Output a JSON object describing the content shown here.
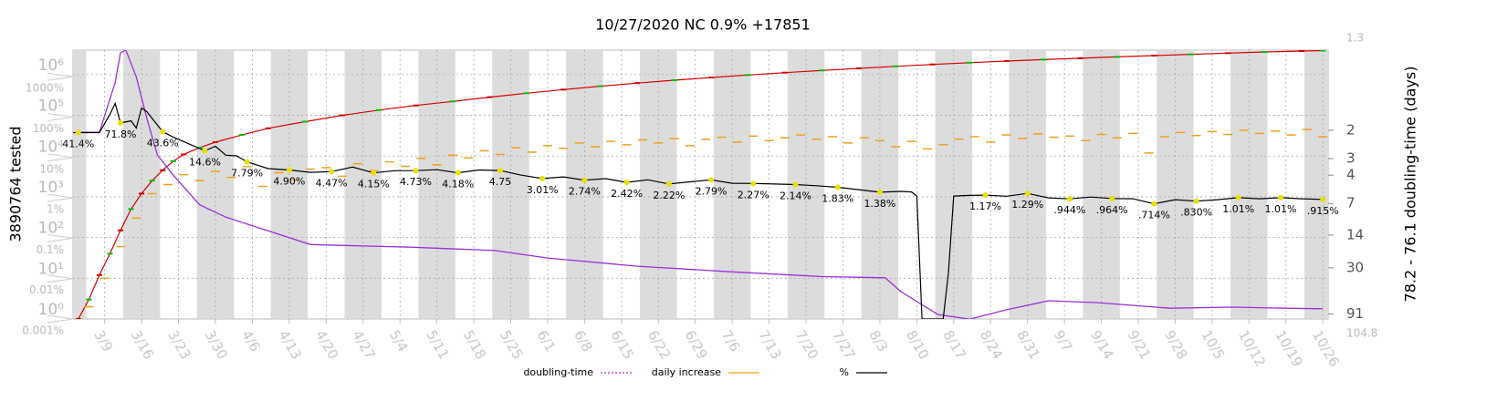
{
  "chart_data": {
    "type": "line",
    "title": "10/27/2020 NC 0.9% +17851",
    "ylabel": "3890764 tested",
    "y2label": "78.2 - 76.1 doubling-time (days)",
    "log_y": true,
    "grid": true,
    "legend": "bottom",
    "xlim": [
      63,
      301
    ],
    "xticks": [
      {
        "value": 69,
        "label": "3/9"
      },
      {
        "value": 76,
        "label": "3/16"
      },
      {
        "value": 83,
        "label": "3/23"
      },
      {
        "value": 90,
        "label": "3/30"
      },
      {
        "value": 97,
        "label": "4/6"
      },
      {
        "value": 104,
        "label": "4/13"
      },
      {
        "value": 111,
        "label": "4/20"
      },
      {
        "value": 118,
        "label": "4/27"
      },
      {
        "value": 125,
        "label": "5/4"
      },
      {
        "value": 132,
        "label": "5/11"
      },
      {
        "value": 139,
        "label": "5/18"
      },
      {
        "value": 146,
        "label": "5/25"
      },
      {
        "value": 153,
        "label": "6/1"
      },
      {
        "value": 160,
        "label": "6/8"
      },
      {
        "value": 167,
        "label": "6/15"
      },
      {
        "value": 174,
        "label": "6/22"
      },
      {
        "value": 181,
        "label": "6/29"
      },
      {
        "value": 188,
        "label": "7/6"
      },
      {
        "value": 195,
        "label": "7/13"
      },
      {
        "value": 202,
        "label": "7/20"
      },
      {
        "value": 209,
        "label": "7/27"
      },
      {
        "value": 216,
        "label": "8/3"
      },
      {
        "value": 223,
        "label": "8/10"
      },
      {
        "value": 230,
        "label": "8/17"
      },
      {
        "value": 237,
        "label": "8/24"
      },
      {
        "value": 244,
        "label": "8/31"
      },
      {
        "value": 251,
        "label": "9/7"
      },
      {
        "value": 258,
        "label": "9/14"
      },
      {
        "value": 265,
        "label": "9/21"
      },
      {
        "value": 272,
        "label": "9/28"
      },
      {
        "value": 279,
        "label": "10/5"
      },
      {
        "value": 286,
        "label": "10/12"
      },
      {
        "value": 293,
        "label": "10/19"
      },
      {
        "value": 300,
        "label": "10/26"
      }
    ],
    "ylim": [
      1,
      4000000
    ],
    "yticks": [
      {
        "value": 1,
        "label": "10⁰"
      },
      {
        "value": 10,
        "label": "10¹"
      },
      {
        "value": 100,
        "label": "10²"
      },
      {
        "value": 1000,
        "label": "10³"
      },
      {
        "value": 10000,
        "label": "10⁴"
      },
      {
        "value": 100000,
        "label": "10⁵"
      },
      {
        "value": 1000000,
        "label": "10⁶"
      }
    ],
    "pct_ylim": [
      0.001,
      4570
    ],
    "pct_yticks": [
      {
        "value": 0.001,
        "label": "0.001%"
      },
      {
        "value": 0.01,
        "label": "0.01%"
      },
      {
        "value": 0.1,
        "label": "0.1%"
      },
      {
        "value": 1,
        "label": "1%"
      },
      {
        "value": 10,
        "label": "10%"
      },
      {
        "value": 100,
        "label": "100%"
      },
      {
        "value": 1000,
        "label": "1000%"
      }
    ],
    "y2lim": [
      1.3,
      104.8
    ],
    "y2ticks": [
      2,
      3,
      4,
      7,
      14,
      30,
      91
    ],
    "series": [
      {
        "color": "#d40000",
        "alt_color": "#00c000",
        "x": [
          64,
          66,
          68,
          70,
          72,
          74,
          76,
          78,
          80,
          82,
          84,
          87,
          90,
          95,
          100,
          107,
          114,
          121,
          128,
          135,
          142,
          149,
          156,
          163,
          170,
          177,
          184,
          191,
          198,
          205,
          212,
          219,
          226,
          233,
          240,
          247,
          254,
          261,
          268,
          275,
          282,
          289,
          296,
          300
        ],
        "values": [
          1,
          3,
          12,
          40,
          150,
          500,
          1200,
          2500,
          4500,
          7500,
          11000,
          16000,
          22000,
          33000,
          48000,
          70000,
          100000,
          135000,
          175000,
          220000,
          280000,
          350000,
          430000,
          520000,
          620000,
          730000,
          850000,
          980000,
          1120000,
          1270000,
          1430000,
          1600000,
          1780000,
          1960000,
          2150000,
          2340000,
          2530000,
          2730000,
          2940000,
          3150000,
          3370000,
          3600000,
          3800000,
          3890764
        ]
      },
      {
        "name": "doubling-time",
        "color": "#9b30d9",
        "axis": "y2",
        "x": [
          64,
          68,
          71,
          72,
          73,
          75,
          77,
          79,
          82,
          87,
          92,
          101,
          108,
          118,
          127,
          143,
          153,
          170,
          188,
          205,
          217,
          220,
          227,
          233,
          240,
          248,
          257,
          271,
          283,
          293,
          300
        ],
        "values": [
          2.05,
          2.05,
          1.31,
          1.15,
          1.14,
          1.27,
          1.75,
          2.83,
          4,
          7.2,
          9.4,
          13.2,
          17.4,
          18,
          18.5,
          20,
          23.8,
          28.9,
          33,
          37,
          38,
          53,
          92,
          103,
          82,
          66,
          69,
          79,
          77,
          79,
          80
        ]
      },
      {
        "name": "daily increase",
        "color": "#f0a020",
        "x": [
          66,
          69,
          72,
          75,
          78,
          81,
          84,
          87,
          90,
          93,
          96,
          99,
          102,
          105,
          108,
          111,
          114,
          117,
          120,
          123,
          126,
          129,
          132,
          135,
          138,
          141,
          144,
          147,
          150,
          153,
          156,
          159,
          162,
          165,
          168,
          171,
          174,
          177,
          180,
          183,
          186,
          189,
          192,
          195,
          198,
          201,
          204,
          207,
          210,
          213,
          216,
          219,
          222,
          225,
          228,
          231,
          234,
          237,
          240,
          243,
          246,
          249,
          252,
          255,
          258,
          261,
          264,
          267,
          270,
          273,
          276,
          279,
          282,
          285,
          288,
          291,
          294,
          297,
          300
        ],
        "values": [
          2,
          10,
          60,
          300,
          1200,
          2000,
          3500,
          2500,
          4200,
          3000,
          5500,
          1800,
          3900,
          2600,
          4800,
          5200,
          3200,
          6500,
          4400,
          7200,
          5600,
          8800,
          6100,
          10500,
          9000,
          13500,
          11000,
          16000,
          12500,
          18000,
          15500,
          21000,
          17000,
          23000,
          19000,
          25000,
          21000,
          27000,
          18000,
          26000,
          29000,
          22000,
          31000,
          24000,
          28000,
          33000,
          26000,
          30000,
          21000,
          28000,
          24000,
          17000,
          23000,
          15000,
          19000,
          26000,
          30000,
          22000,
          33000,
          27000,
          35000,
          29000,
          31000,
          24000,
          34000,
          28000,
          36000,
          12000,
          30000,
          38000,
          32000,
          40000,
          34000,
          43000,
          36000,
          41000,
          33000,
          45000,
          30000
        ]
      },
      {
        "name": "%",
        "color": "#000000",
        "axis": "pct",
        "x": [
          63,
          64,
          68,
          70,
          71,
          72,
          74,
          75,
          76,
          77,
          80,
          82,
          84,
          86,
          88,
          90,
          92,
          94,
          96,
          100,
          104,
          108,
          112,
          116,
          120,
          124,
          128,
          132,
          136,
          140,
          144,
          148,
          152,
          156,
          160,
          164,
          168,
          172,
          176,
          180,
          184,
          188,
          192,
          196,
          200,
          204,
          208,
          212,
          216,
          220,
          222,
          223,
          224,
          228,
          229,
          230,
          233,
          236,
          240,
          244,
          248,
          252,
          256,
          260,
          264,
          268,
          272,
          276,
          280,
          284,
          288,
          292,
          296,
          300
        ],
        "values": [
          41.4,
          41.4,
          41.4,
          117,
          218,
          71.8,
          81,
          53.6,
          168,
          136,
          43.6,
          32,
          24.7,
          19.1,
          14.6,
          19,
          11.4,
          11,
          7.79,
          5.3,
          4.9,
          4.3,
          4.47,
          5.8,
          4.15,
          4.7,
          4.73,
          5.0,
          4.18,
          4.9,
          4.75,
          3.65,
          3.01,
          3.3,
          2.74,
          3.0,
          2.42,
          2.8,
          2.22,
          2.5,
          2.79,
          2.3,
          2.27,
          2.2,
          2.14,
          2.0,
          1.83,
          1.6,
          1.38,
          1.45,
          1.4,
          1.11,
          0.001,
          0.001,
          0.0137,
          1.11,
          1.15,
          1.17,
          1.1,
          1.29,
          1.0,
          0.944,
          1.05,
          0.964,
          0.95,
          0.714,
          0.9,
          0.83,
          0.9,
          1.01,
          0.95,
          1.01,
          0.95,
          0.915
        ]
      },
      {
        "color": "#e8e000",
        "axis": "pct",
        "x": [
          64,
          72,
          80,
          88,
          96,
          104,
          112,
          120,
          128,
          136,
          144,
          152,
          160,
          168,
          176,
          184,
          192,
          200,
          208,
          216,
          236,
          244,
          252,
          260,
          268,
          276,
          284,
          292,
          300
        ],
        "values": [
          41.4,
          71.8,
          43.6,
          14.6,
          7.79,
          4.9,
          4.47,
          4.15,
          4.73,
          4.18,
          4.75,
          3.01,
          2.74,
          2.42,
          2.22,
          2.79,
          2.27,
          2.14,
          1.83,
          1.38,
          1.17,
          1.29,
          0.944,
          0.964,
          0.714,
          0.83,
          1.01,
          1.01,
          0.915
        ],
        "value_labels": [
          "41.4%",
          "71.8%",
          "43.6%",
          "14.6%",
          "7.79%",
          "4.90%",
          "4.47%",
          "4.15%",
          "4.73%",
          "4.18%",
          "4.75",
          "3.01%",
          "2.74%",
          "2.42%",
          "2.22%",
          "2.79%",
          "2.27%",
          "2.14%",
          "1.83%",
          "1.38%",
          "1.17%",
          "1.29%",
          ".944%",
          ".964%",
          ".714%",
          ".830%",
          "1.01%",
          "1.01%",
          ".915%"
        ]
      }
    ]
  }
}
